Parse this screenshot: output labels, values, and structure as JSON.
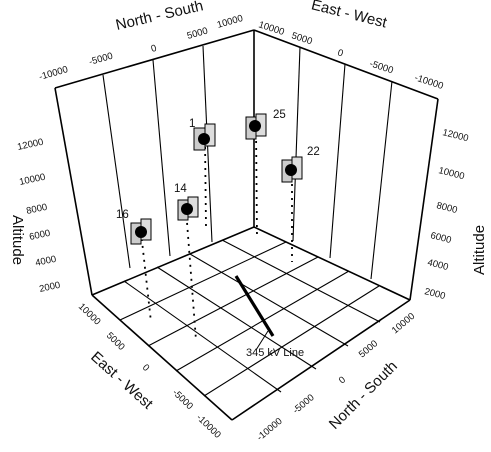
{
  "axes": {
    "top_left_title": "North - South",
    "top_right_title": "East - West",
    "left_title": "Altitude",
    "right_title": "Altitude",
    "bottom_left_title": "East - West",
    "bottom_right_title": "North - South"
  },
  "top_left_ticks": [
    "-10000",
    "-5000",
    "0",
    "5000",
    "10000"
  ],
  "top_right_ticks": [
    "10000",
    "5000",
    "0",
    "-5000",
    "-10000"
  ],
  "left_alt_ticks": [
    "2000",
    "4000",
    "6000",
    "8000",
    "10000",
    "12000"
  ],
  "right_alt_ticks": [
    "2000",
    "4000",
    "6000",
    "8000",
    "10000",
    "12000"
  ],
  "bottom_left_ticks": [
    "10000",
    "5000",
    "0",
    "-5000",
    "-10000"
  ],
  "bottom_right_ticks": [
    "10000",
    "5000",
    "0",
    "-5000",
    "-10000"
  ],
  "line_label": "345 kV Line",
  "balloons": [
    {
      "id": "1"
    },
    {
      "id": "25"
    },
    {
      "id": "22"
    },
    {
      "id": "14"
    },
    {
      "id": "16"
    }
  ]
}
